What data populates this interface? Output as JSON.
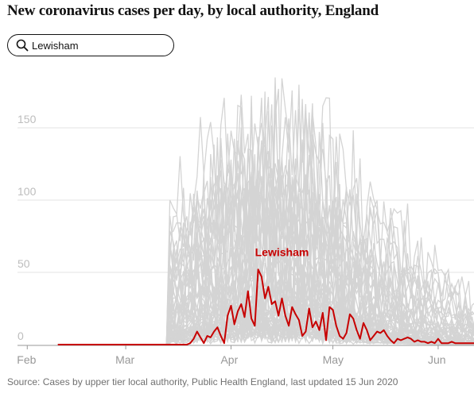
{
  "header": {
    "title": "New coronavirus cases per day, by local authority, England"
  },
  "search": {
    "value": "Lewisham",
    "icon": "search-icon"
  },
  "footer": {
    "source": "Source: Cases by upper tier local authority, Public Health England, last updated 15 Jun 2020"
  },
  "colors": {
    "highlight": "#c70000",
    "background_lines": "#d4d4d4",
    "grid": "#e3e3e3"
  },
  "chart_data": {
    "type": "line",
    "title": "New coronavirus cases per day, by local authority, England",
    "xlabel": "",
    "ylabel": "",
    "ylim": [
      0,
      185
    ],
    "xlim": [
      "2020-01-31",
      "2020-06-14"
    ],
    "grid": true,
    "x_ticks": [
      {
        "date": "2020-02-01",
        "label": "Feb"
      },
      {
        "date": "2020-03-01",
        "label": "Mar"
      },
      {
        "date": "2020-04-01",
        "label": "Apr"
      },
      {
        "date": "2020-05-01",
        "label": "May"
      },
      {
        "date": "2020-06-01",
        "label": "Jun"
      }
    ],
    "y_ticks": [
      0,
      50,
      100,
      150
    ],
    "highlight": {
      "name": "Lewisham",
      "color": "#c70000",
      "start": "2020-02-10",
      "values": [
        0,
        0,
        0,
        0,
        0,
        0,
        0,
        0,
        0,
        0,
        0,
        0,
        0,
        0,
        0,
        0,
        0,
        0,
        0,
        0,
        0,
        0,
        0,
        0,
        0,
        0,
        0,
        0,
        0,
        0,
        0,
        0,
        0,
        0,
        0,
        0,
        0,
        0,
        0,
        1,
        4,
        9,
        5,
        1,
        6,
        5,
        9,
        12,
        6,
        1,
        20,
        27,
        14,
        23,
        28,
        19,
        37,
        18,
        13,
        52,
        47,
        32,
        40,
        28,
        30,
        20,
        32,
        20,
        13,
        26,
        21,
        17,
        6,
        9,
        25,
        12,
        16,
        10,
        22,
        3,
        26,
        24,
        13,
        6,
        4,
        8,
        21,
        18,
        10,
        4,
        15,
        10,
        3,
        6,
        9,
        8,
        10,
        6,
        3,
        1,
        4,
        3,
        4,
        5,
        4,
        2,
        3,
        2,
        2,
        1,
        2,
        1,
        4,
        1,
        1,
        1,
        2,
        1,
        1,
        1,
        1,
        1,
        1,
        1,
        0
      ]
    },
    "background_series_count": 60,
    "background_max": 180
  }
}
